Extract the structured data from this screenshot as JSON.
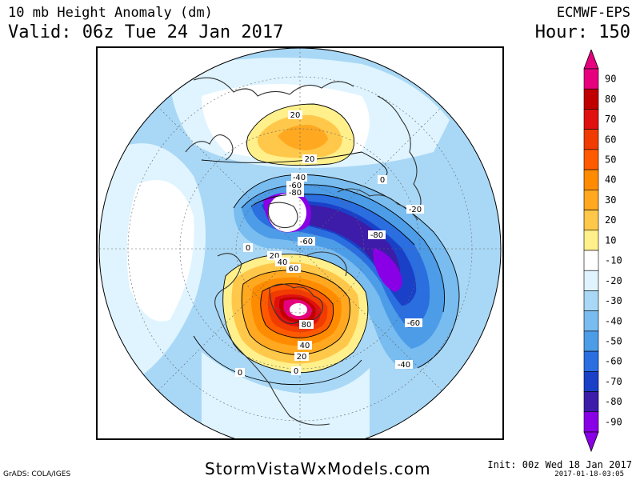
{
  "header": {
    "title": "10 mb Height Anomaly (dm)",
    "valid": "Valid: 06z Tue 24 Jan 2017",
    "model": "ECMWF-EPS",
    "hour": "Hour: 150"
  },
  "map": {
    "contour_labels": [
      "20",
      "20",
      "0",
      "-40",
      "-60",
      "-80",
      "-20",
      "-60",
      "-80",
      "0",
      "20",
      "40",
      "60",
      "80",
      "-60",
      "-40",
      "40",
      "20",
      "0",
      "0"
    ]
  },
  "legend": {
    "levels": [
      {
        "label": "90",
        "color": "#e6007e"
      },
      {
        "label": "80",
        "color": "#c00000"
      },
      {
        "label": "70",
        "color": "#e01010"
      },
      {
        "label": "60",
        "color": "#f03c00"
      },
      {
        "label": "50",
        "color": "#ff5a00"
      },
      {
        "label": "40",
        "color": "#ff8c00"
      },
      {
        "label": "30",
        "color": "#ffa820"
      },
      {
        "label": "20",
        "color": "#ffc84a"
      },
      {
        "label": "10",
        "color": "#fff08c"
      },
      {
        "label": "-10",
        "color": "#ffffff"
      },
      {
        "label": "-20",
        "color": "#dff4ff"
      },
      {
        "label": "-30",
        "color": "#a9d8f6"
      },
      {
        "label": "-40",
        "color": "#78bcf0"
      },
      {
        "label": "-50",
        "color": "#4c9ce8"
      },
      {
        "label": "-60",
        "color": "#2a6ee0"
      },
      {
        "label": "-70",
        "color": "#1a40c8"
      },
      {
        "label": "-80",
        "color": "#3c1ca8"
      },
      {
        "label": "-90",
        "color": "#8a00e6"
      }
    ]
  },
  "footer": {
    "grads": "GrADS: COLA/IGES",
    "site": "StormVistaWxModels.com",
    "init": "Init: 00z Wed 18 Jan 2017",
    "stamp": "2017-01-18-03:05"
  }
}
